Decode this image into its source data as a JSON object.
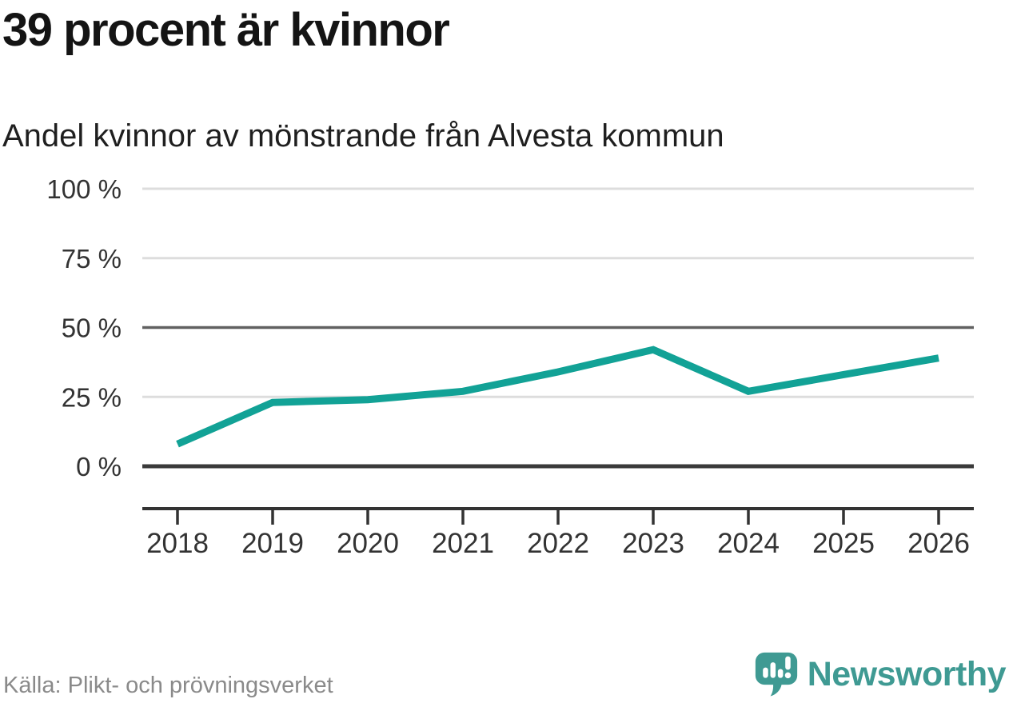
{
  "header": {
    "title": "39 procent är kvinnor",
    "subtitle": "Andel kvinnor av mönstrande från Alvesta kommun"
  },
  "chart_data": {
    "type": "line",
    "title": "39 procent är kvinnor",
    "subtitle": "Andel kvinnor av mönstrande från Alvesta kommun",
    "x": [
      2018,
      2019,
      2020,
      2021,
      2022,
      2023,
      2024,
      2025,
      2026
    ],
    "series": [
      {
        "name": "Andel kvinnor av mönstrande",
        "values": [
          8,
          23,
          24,
          27,
          34,
          42,
          27,
          33,
          39
        ]
      }
    ],
    "unit": "%",
    "ylim": [
      0,
      100
    ],
    "yticks": [
      0,
      25,
      50,
      75,
      100
    ],
    "ytick_labels": [
      "0 %",
      "25 %",
      "50 %",
      "75 %",
      "100 %"
    ],
    "grid": "horizontal",
    "legend": "none",
    "emphasized_gridlines": [
      0,
      50
    ],
    "colors": {
      "line": "#12A296",
      "grid_light": "#DDDDDD",
      "grid_mid": "#616161",
      "grid_zero": "#3A3A3A",
      "axis": "#333333",
      "tick_text": "#333333"
    }
  },
  "footer": {
    "source": "Källa: Plikt- och prövningsverket",
    "logo_text": "Newsworthy",
    "logo_color": "#3F9A93"
  }
}
